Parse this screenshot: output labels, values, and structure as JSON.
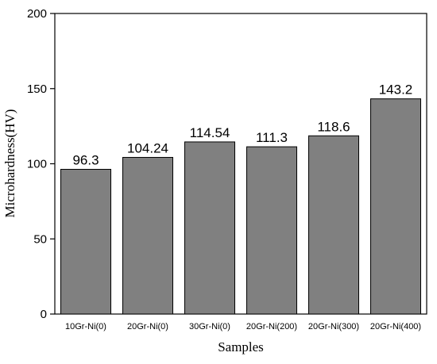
{
  "chart_data": {
    "type": "bar",
    "xlabel": "Samples",
    "ylabel": "Microhardness(HV)",
    "ylim": [
      0,
      200
    ],
    "yticks": [
      0,
      50,
      100,
      150,
      200
    ],
    "categories": [
      "10Gr-Ni(0)",
      "20Gr-Ni(0)",
      "30Gr-Ni(0)",
      "20Gr-Ni(200)",
      "20Gr-Ni(300)",
      "20Gr-Ni(400)"
    ],
    "values": [
      96.3,
      104.24,
      114.54,
      111.3,
      118.6,
      143.2
    ],
    "data_labels": [
      "96.3",
      "104.24",
      "114.54",
      "111.3",
      "118.6",
      "143.2"
    ],
    "bar_color": "#808080",
    "grid": false,
    "legend": "none"
  }
}
